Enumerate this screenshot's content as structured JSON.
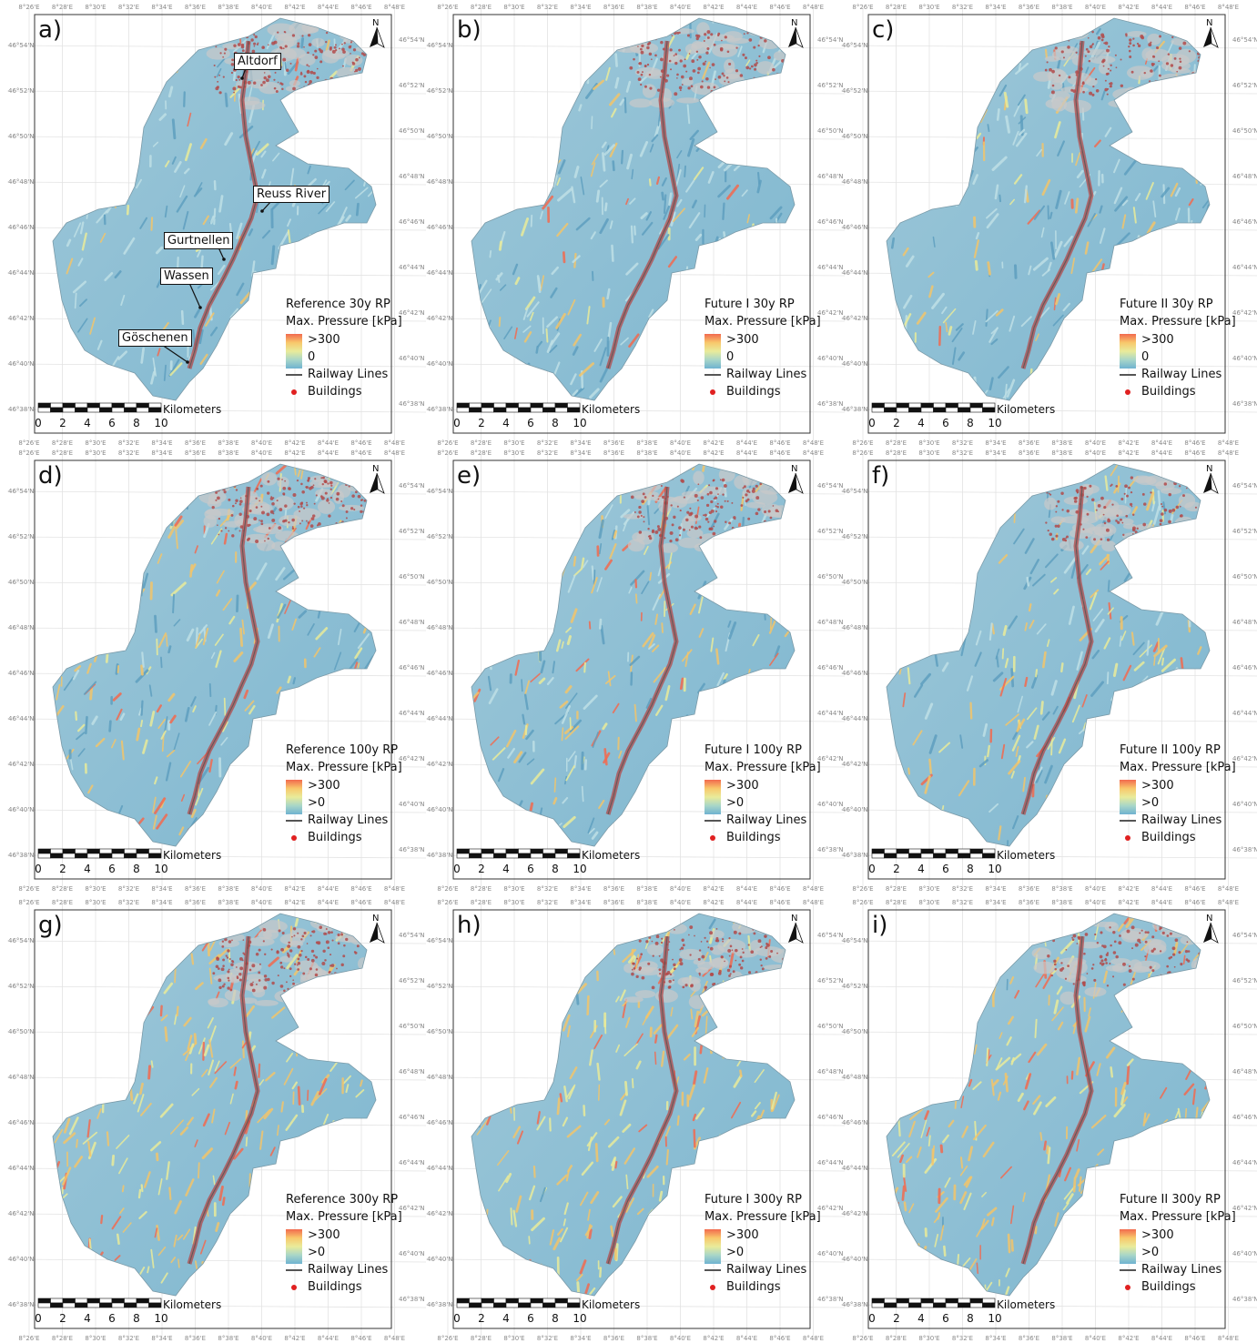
{
  "lon_ticks": [
    "8°26'E",
    "8°28'E",
    "8°30'E",
    "8°32'E",
    "8°34'E",
    "8°36'E",
    "8°38'E",
    "8°40'E",
    "8°42'E",
    "8°44'E",
    "8°46'E",
    "8°48'E"
  ],
  "lat_ticks": [
    "46°54'N",
    "46°52'N",
    "46°50'N",
    "46°48'N",
    "46°46'N",
    "46°44'N",
    "46°42'N",
    "46°40'N",
    "46°38'N"
  ],
  "north_arrow": "N",
  "scale_bar": {
    "unit": "Kilometers",
    "ticks": [
      "0",
      "2",
      "4",
      "6",
      "8",
      "10"
    ]
  },
  "legend_common": {
    "heading": "Max. Pressure [kPa]",
    "high": ">300",
    "railway": "Railway Lines",
    "buildings": "Buildings"
  },
  "colors": {
    "low": "#6fb2d0",
    "mid": "#e9eb9a",
    "high": "#f26a4f",
    "settlement": "#b24a4a",
    "railway": "#555555",
    "building": "#e02020"
  },
  "places": {
    "altdorf": "Altdorf",
    "reuss": "Reuss River",
    "gurtnellen": "Gurtnellen",
    "wassen": "Wassen",
    "goschenen": "Göschenen"
  },
  "panels": [
    {
      "label": "a)",
      "title": "Reference 30y RP",
      "low": "0",
      "intensity": 0.15,
      "settlement": 1.0
    },
    {
      "label": "b)",
      "title": "Future I 30y RP",
      "low": "0",
      "intensity": 0.2,
      "settlement": 0.9
    },
    {
      "label": "c)",
      "title": "Future II 30y RP",
      "low": "0",
      "intensity": 0.2,
      "settlement": 0.7
    },
    {
      "label": "d)",
      "title": "Reference 100y RP",
      "low": ">0",
      "intensity": 0.45,
      "settlement": 1.0
    },
    {
      "label": "e)",
      "title": "Future I 100y RP",
      "low": ">0",
      "intensity": 0.4,
      "settlement": 0.9
    },
    {
      "label": "f)",
      "title": "Future II 100y RP",
      "low": ">0",
      "intensity": 0.4,
      "settlement": 0.7
    },
    {
      "label": "g)",
      "title": "Reference 300y RP",
      "low": ">0",
      "intensity": 0.75,
      "settlement": 1.0
    },
    {
      "label": "h)",
      "title": "Future I 300y RP",
      "low": ">0",
      "intensity": 0.7,
      "settlement": 0.9
    },
    {
      "label": "i)",
      "title": "Future II 300y RP",
      "low": ">0",
      "intensity": 0.7,
      "settlement": 0.7
    }
  ]
}
